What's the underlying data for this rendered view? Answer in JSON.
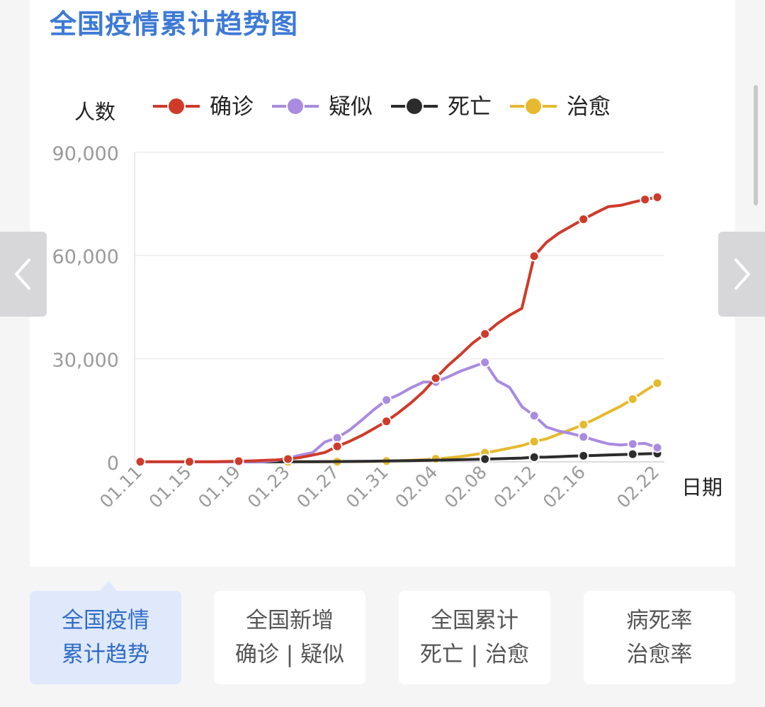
{
  "page": {
    "title": "全国疫情累计趋势图"
  },
  "tabs": [
    {
      "line1": "全国疫情",
      "line2": "累计趋势",
      "active": true
    },
    {
      "line1": "全国新增",
      "line2": "确诊 | 疑似",
      "active": false
    },
    {
      "line1": "全国累计",
      "line2": "死亡 | 治愈",
      "active": false
    },
    {
      "line1": "病死率",
      "line2": "治愈率",
      "active": false
    }
  ],
  "nav": {
    "prev_icon": "chevron-left-icon",
    "next_icon": "chevron-right-icon"
  },
  "colors": {
    "title": "#3d7ad6",
    "active_tab_bg": "#dfe9fb",
    "active_tab_text": "#2f6bc7"
  },
  "chart_data": {
    "type": "line",
    "title": "",
    "xlabel": "日期",
    "ylabel": "人数",
    "ylim": [
      0,
      90000
    ],
    "y_ticks": [
      "0",
      "30,000",
      "60,000",
      "90,000"
    ],
    "y_tick_values": [
      0,
      30000,
      60000,
      90000
    ],
    "grid": true,
    "legend": "top",
    "x_tick_labels": [
      "01.11",
      "01.15",
      "01.19",
      "01.23",
      "01.27",
      "01.31",
      "02.04",
      "02.08",
      "02.12",
      "02.16",
      "02.22"
    ],
    "x": [
      "01.11",
      "01.12",
      "01.13",
      "01.14",
      "01.15",
      "01.16",
      "01.17",
      "01.18",
      "01.19",
      "01.20",
      "01.21",
      "01.22",
      "01.23",
      "01.24",
      "01.25",
      "01.26",
      "01.27",
      "01.28",
      "01.29",
      "01.30",
      "01.31",
      "02.01",
      "02.02",
      "02.03",
      "02.04",
      "02.05",
      "02.06",
      "02.07",
      "02.08",
      "02.09",
      "02.10",
      "02.11",
      "02.12",
      "02.13",
      "02.14",
      "02.15",
      "02.16",
      "02.17",
      "02.18",
      "02.19",
      "02.20",
      "02.21",
      "02.22"
    ],
    "series": [
      {
        "name": "确诊",
        "color": "#cf3a2a",
        "values": [
          41,
          41,
          41,
          41,
          41,
          45,
          62,
          121,
          198,
          291,
          440,
          571,
          830,
          1287,
          1975,
          2744,
          4515,
          5974,
          7711,
          9692,
          11791,
          14380,
          17205,
          20438,
          24324,
          28018,
          31161,
          34546,
          37198,
          40171,
          42638,
          44653,
          59804,
          63851,
          66492,
          68500,
          70548,
          72436,
          74185,
          74576,
          75465,
          76288,
          76936
        ],
        "marker_idx": [
          0,
          4,
          8,
          12,
          16,
          20,
          24,
          28,
          32,
          36,
          41,
          42
        ]
      },
      {
        "name": "疑似",
        "color": "#a98be0",
        "values": [
          0,
          0,
          0,
          0,
          0,
          0,
          0,
          0,
          0,
          54,
          37,
          393,
          1072,
          1965,
          2684,
          5794,
          6973,
          9239,
          12167,
          15238,
          17988,
          19544,
          21558,
          23214,
          23260,
          24702,
          26359,
          27657,
          28942,
          23589,
          21675,
          16067,
          13435,
          10109,
          8969,
          8228,
          7264,
          6242,
          5248,
          4922,
          5206,
          5365,
          4148
        ],
        "marker_idx": [
          12,
          16,
          20,
          24,
          28,
          32,
          36,
          40,
          42
        ]
      },
      {
        "name": "死亡",
        "color": "#2c2c2c",
        "values": [
          1,
          1,
          1,
          1,
          2,
          2,
          2,
          3,
          4,
          6,
          9,
          17,
          25,
          41,
          56,
          80,
          106,
          132,
          170,
          213,
          259,
          304,
          361,
          425,
          490,
          563,
          636,
          722,
          811,
          908,
          1016,
          1113,
          1367,
          1380,
          1523,
          1665,
          1770,
          1868,
          2004,
          2118,
          2236,
          2345,
          2442
        ],
        "marker_idx": [
          28,
          32,
          36,
          40,
          42
        ]
      },
      {
        "name": "治愈",
        "color": "#e6b92e",
        "values": [
          0,
          0,
          0,
          0,
          0,
          0,
          0,
          0,
          0,
          25,
          25,
          28,
          34,
          38,
          49,
          51,
          60,
          103,
          124,
          171,
          243,
          328,
          475,
          632,
          892,
          1153,
          1540,
          2050,
          2649,
          3281,
          3996,
          4740,
          5911,
          6723,
          8096,
          9419,
          10844,
          12552,
          14376,
          16155,
          18264,
          20659,
          22888
        ],
        "marker_idx": [
          0,
          4,
          8,
          12,
          16,
          20,
          24,
          28,
          32,
          36,
          40,
          42
        ]
      }
    ]
  }
}
